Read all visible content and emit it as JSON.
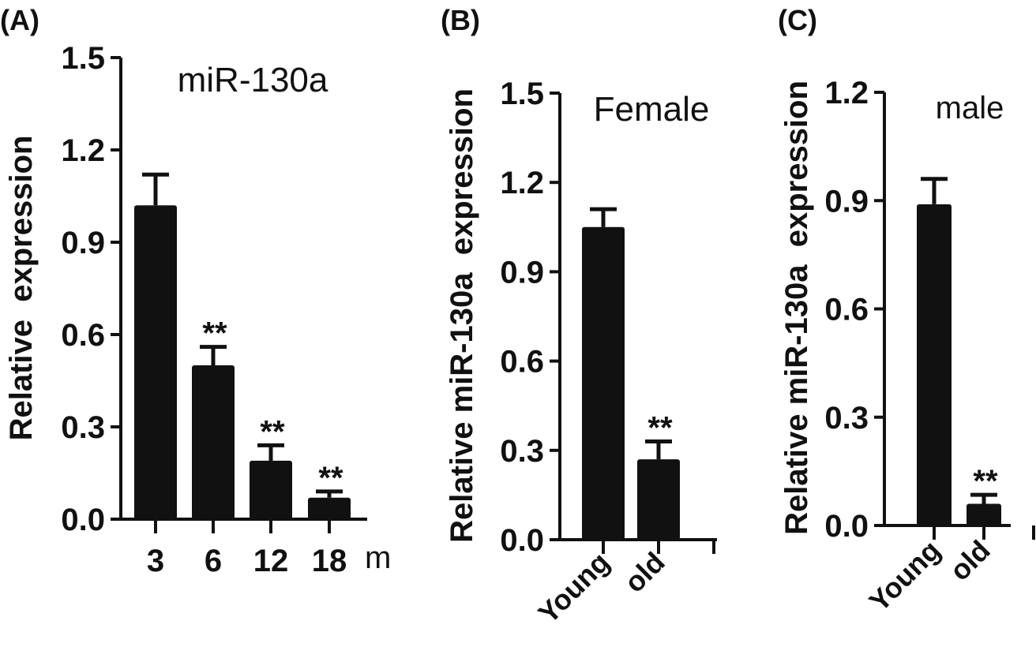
{
  "chart_data": [
    {
      "panel": "(A)",
      "type": "bar",
      "title": "miR-130a",
      "ylabel": "Relative  expression",
      "xunit": "m",
      "categories": [
        "3",
        "6",
        "12",
        "18"
      ],
      "values": [
        1.02,
        0.5,
        0.19,
        0.07
      ],
      "errors": [
        0.1,
        0.06,
        0.05,
        0.02
      ],
      "annotations": [
        "",
        "**",
        "**",
        "**"
      ],
      "ylim": [
        0,
        1.5
      ],
      "yticks": [
        "0.0",
        "0.3",
        "0.6",
        "0.9",
        "1.2",
        "1.5"
      ],
      "grid": false,
      "bar_color": "#111111"
    },
    {
      "panel": "(B)",
      "type": "bar",
      "title": "Female",
      "ylabel": "Relative miR-130a  expression",
      "categories": [
        "Young",
        "old"
      ],
      "values": [
        1.05,
        0.27
      ],
      "errors": [
        0.06,
        0.06
      ],
      "annotations": [
        "",
        "**"
      ],
      "ylim": [
        0,
        1.5
      ],
      "yticks": [
        "0.0",
        "0.3",
        "0.6",
        "0.9",
        "1.2",
        "1.5"
      ],
      "grid": false,
      "bar_color": "#111111"
    },
    {
      "panel": "(C)",
      "type": "bar",
      "title": "male",
      "ylabel": "Relative miR-130a  expression",
      "categories": [
        "Young",
        "old"
      ],
      "values": [
        0.89,
        0.06
      ],
      "errors": [
        0.07,
        0.025
      ],
      "annotations": [
        "",
        "**"
      ],
      "ylim": [
        0,
        1.2
      ],
      "yticks": [
        "0.0",
        "0.3",
        "0.6",
        "0.9",
        "1.2"
      ],
      "grid": false,
      "bar_color": "#111111"
    }
  ]
}
